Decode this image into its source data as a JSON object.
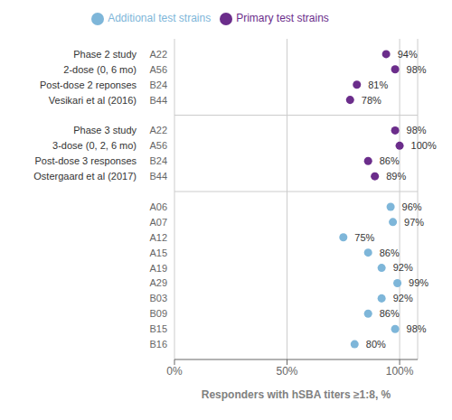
{
  "chart_data": {
    "type": "scatter",
    "orientation": "horizontal",
    "xlabel": "Responders with hSBA titers ≥1:8, %",
    "categories": [
      "A22",
      "A56",
      "B24",
      "B44",
      null,
      "A22",
      "A56",
      "B24",
      "B44",
      null,
      "A06",
      "A07",
      "A12",
      "A15",
      "A19",
      "A29",
      "B03",
      "B09",
      "B15",
      "B16"
    ],
    "series": [
      {
        "name": "Primary test strains",
        "color": "#6B2D8B",
        "marker": "circle",
        "values": [
          94,
          98,
          81,
          78,
          null,
          98,
          100,
          86,
          89,
          null,
          null,
          null,
          null,
          null,
          null,
          null,
          null,
          null,
          null,
          null
        ],
        "value_labels": [
          "94%",
          "98%",
          "81%",
          "78%",
          null,
          "98%",
          "100%",
          "86%",
          "89%",
          null,
          null,
          null,
          null,
          null,
          null,
          null,
          null,
          null,
          null,
          null
        ]
      },
      {
        "name": "Additional test strains",
        "color": "#7EB6D9",
        "marker": "circle",
        "values": [
          null,
          null,
          null,
          null,
          null,
          null,
          null,
          null,
          null,
          null,
          96,
          97,
          75,
          86,
          92,
          99,
          92,
          86,
          98,
          80
        ],
        "value_labels": [
          null,
          null,
          null,
          null,
          null,
          null,
          null,
          null,
          null,
          null,
          "96%",
          "97%",
          "75%",
          "86%",
          "92%",
          "99%",
          "92%",
          "86%",
          "98%",
          "80%"
        ]
      }
    ],
    "annotations": [
      {
        "text": "Phase 2 study",
        "row": 0
      },
      {
        "text": "2-dose (0, 6 mo)",
        "row": 1
      },
      {
        "text": "Post-dose 2 reponses",
        "row": 2
      },
      {
        "text": "Vesikari et al (2016)",
        "row": 3
      },
      {
        "text": "Phase 3 study",
        "row": 5
      },
      {
        "text": "3-dose (0, 2, 6 mo)",
        "row": 6
      },
      {
        "text": "Post-dose 3 responses",
        "row": 7
      },
      {
        "text": "Ostergaard et al (2017)",
        "row": 8
      }
    ],
    "xlim": [
      0,
      108
    ],
    "xticks": [
      {
        "value": 0,
        "label": "0%"
      },
      {
        "value": 50,
        "label": "50%"
      },
      {
        "value": 100,
        "label": "100%"
      }
    ],
    "grid": true,
    "legend": "top",
    "data_labels": true
  }
}
